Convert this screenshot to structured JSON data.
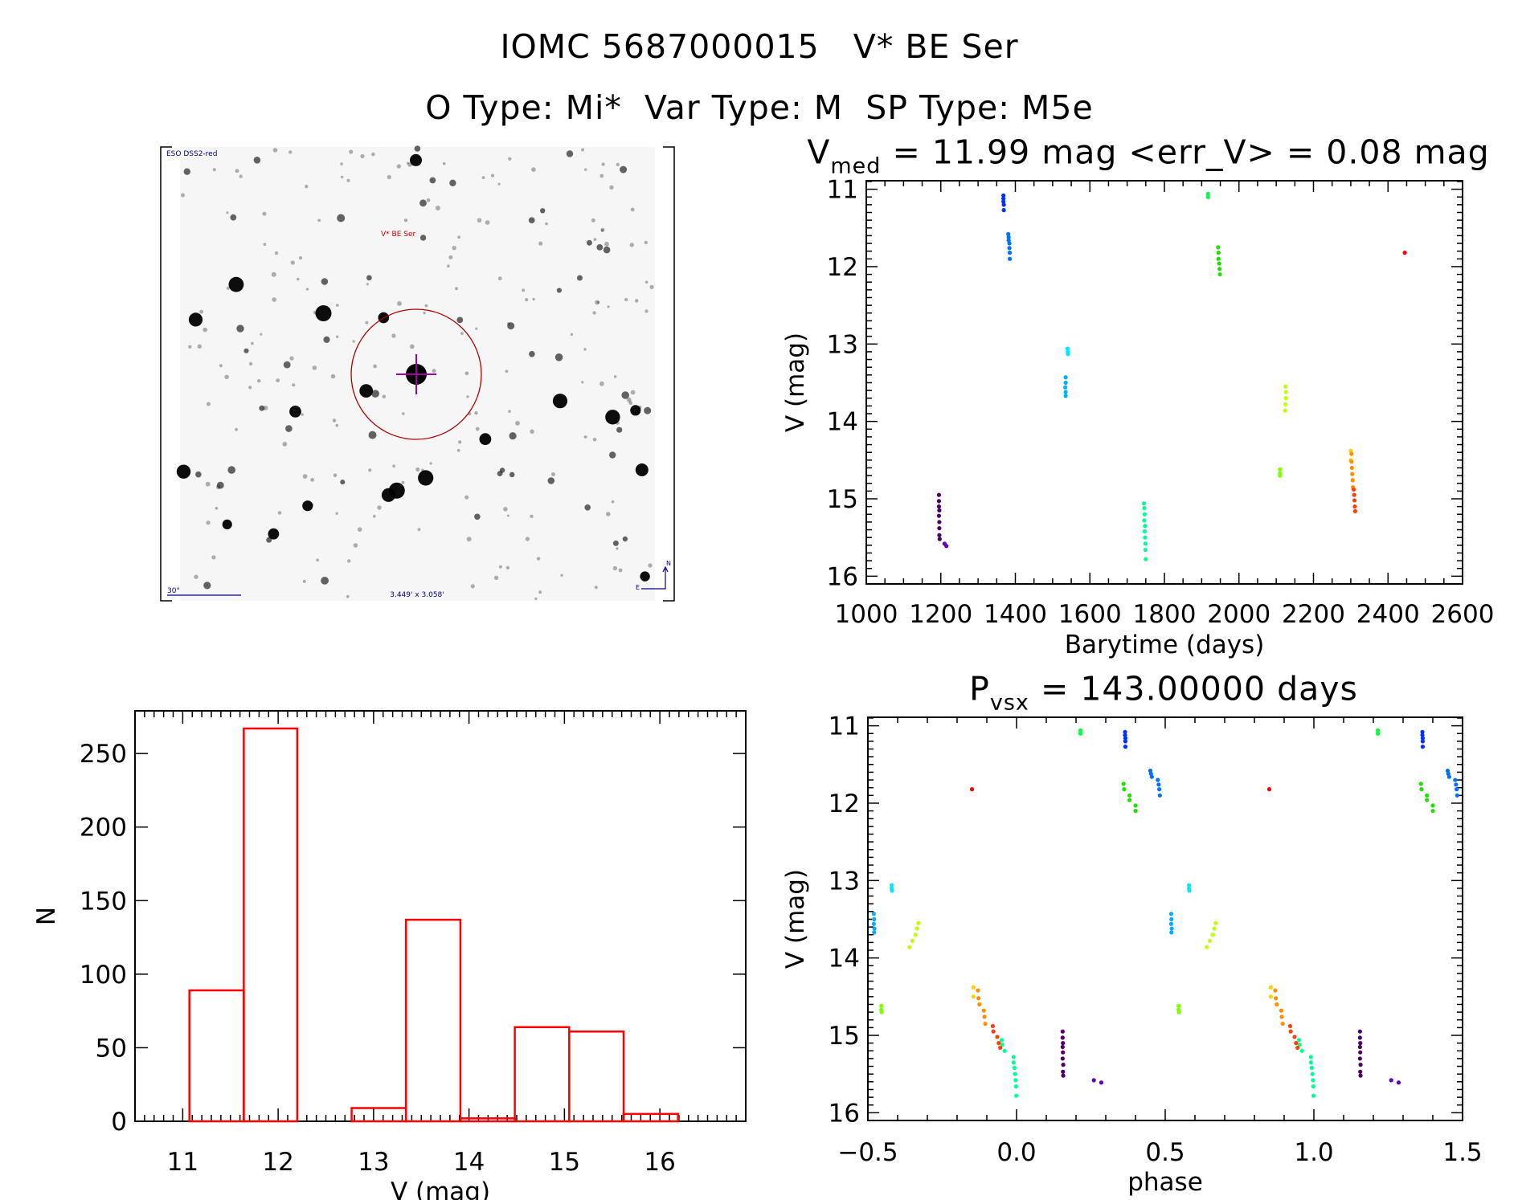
{
  "header": {
    "title_line1": "IOMC 5687000015   V* BE Ser",
    "title_line2": "O Type: Mi*  Var Type: M  SP Type: M5e"
  },
  "finder_image": {
    "survey_label": "ESO DSS2-red",
    "target_label": "V* BE Ser",
    "scale_label": "30\"",
    "fov_label": "3.449' x 3.058'",
    "compass_n": "N",
    "compass_e": "E"
  },
  "chart_data": [
    {
      "id": "lightcurve",
      "type": "scatter",
      "title": {
        "main": "V",
        "sub": "med",
        "rest": " = 11.99 mag <err_V> = 0.08 mag"
      },
      "xlabel": "Barytime (days)",
      "ylabel": "V (mag)",
      "xlim": [
        1000,
        2600
      ],
      "ylim": [
        16.1,
        10.89
      ],
      "y_inverted": true,
      "xticks": [
        "1000",
        "1200",
        "1400",
        "1600",
        "1800",
        "2000",
        "2200",
        "2400",
        "2600"
      ],
      "yticks": [
        "11",
        "12",
        "13",
        "14",
        "15",
        "16"
      ]
    },
    {
      "id": "phased",
      "type": "scatter",
      "title": {
        "main": "P",
        "sub": "vsx",
        "rest": " = 143.00000 days"
      },
      "xlabel": "phase",
      "ylabel": "V (mag)",
      "xlim": [
        -0.5,
        1.5
      ],
      "ylim": [
        16.1,
        10.89
      ],
      "y_inverted": true,
      "xticks": [
        "-0.5",
        "0.0",
        "0.5",
        "1.0",
        "1.5"
      ],
      "yticks": [
        "11",
        "12",
        "13",
        "14",
        "15",
        "16"
      ]
    },
    {
      "id": "histogram",
      "type": "bar",
      "xlabel": "V (mag)",
      "ylabel": "N",
      "xlim": [
        10.5,
        16.9
      ],
      "ylim": [
        0,
        279
      ],
      "xticks": [
        "11",
        "12",
        "13",
        "14",
        "15",
        "16"
      ],
      "yticks": [
        "0",
        "50",
        "100",
        "150",
        "200",
        "250"
      ],
      "color": "#ff0000",
      "bin_edges": [
        11.07,
        11.64,
        12.2,
        12.77,
        13.34,
        13.91,
        14.48,
        15.05,
        15.62,
        16.19
      ],
      "counts": [
        89,
        267,
        0,
        9,
        137,
        2,
        64,
        61,
        5
      ]
    }
  ],
  "observations": [
    {
      "color": "#4b0060",
      "t": [
        1195,
        1195,
        1195,
        1196,
        1195,
        1196,
        1196,
        1196,
        1197
      ],
      "phase": [
        0.155,
        0.155,
        0.156,
        0.155,
        0.156,
        0.155,
        0.157,
        0.156,
        0.157
      ],
      "V": [
        14.95,
        15.03,
        15.1,
        15.15,
        15.22,
        15.3,
        15.38,
        15.47,
        15.52
      ]
    },
    {
      "color": "#6000c0",
      "t": [
        1210,
        1215
      ],
      "phase": [
        0.26,
        0.285
      ],
      "V": [
        15.58,
        15.61
      ]
    },
    {
      "color": "#0030ff",
      "t": [
        1368,
        1368,
        1368,
        1369,
        1369
      ],
      "phase": [
        0.365,
        0.365,
        0.366,
        0.366,
        0.366
      ],
      "V": [
        11.08,
        11.12,
        11.16,
        11.2,
        11.27
      ]
    },
    {
      "color": "#0070ff",
      "t": [
        1381,
        1382,
        1382,
        1384,
        1384,
        1385,
        1385
      ],
      "phase": [
        0.45,
        0.452,
        0.455,
        0.475,
        0.478,
        0.48,
        0.482
      ],
      "V": [
        11.58,
        11.62,
        11.66,
        11.7,
        11.76,
        11.82,
        11.9
      ]
    },
    {
      "color": "#00e8ff",
      "t": [
        1540,
        1541,
        1541
      ],
      "phase": [
        0.58,
        0.58,
        0.581
      ],
      "V": [
        13.06,
        13.1,
        13.13
      ]
    },
    {
      "color": "#00b0ff",
      "t": [
        1535,
        1535,
        1534,
        1535,
        1535
      ],
      "phase": [
        0.52,
        0.521,
        0.52,
        0.522,
        0.521
      ],
      "V": [
        13.43,
        13.5,
        13.56,
        13.62,
        13.67
      ]
    },
    {
      "color": "#00ff99",
      "t": [
        1745,
        1746,
        1747,
        1746,
        1748,
        1747,
        1748,
        1749,
        1749,
        1750
      ],
      "phase": [
        0.95,
        0.952,
        0.96,
        0.99,
        0.99,
        0.993,
        0.995,
        0.997,
        0.998,
        0.999
      ],
      "V": [
        15.06,
        15.12,
        15.2,
        15.28,
        15.35,
        15.42,
        15.5,
        15.58,
        15.66,
        15.78
      ]
    },
    {
      "color": "#00ff40",
      "t": [
        1917,
        1917
      ],
      "phase": [
        0.215,
        0.215
      ],
      "V": [
        11.06,
        11.1
      ]
    },
    {
      "color": "#20e000",
      "t": [
        1944,
        1945,
        1945,
        1947,
        1948,
        1949
      ],
      "phase": [
        0.36,
        0.362,
        0.38,
        0.38,
        0.4,
        0.4
      ],
      "V": [
        11.75,
        11.82,
        11.9,
        11.96,
        12.03,
        12.1
      ]
    },
    {
      "color": "#80ff00",
      "t": [
        2110,
        2110,
        2110
      ],
      "phase": [
        0.545,
        0.545,
        0.546
      ],
      "V": [
        14.62,
        14.67,
        14.7
      ]
    },
    {
      "color": "#c0ff00",
      "t": [
        2125,
        2126,
        2126,
        2125,
        2124
      ],
      "phase": [
        0.67,
        0.665,
        0.66,
        0.65,
        0.64
      ],
      "V": [
        13.55,
        13.62,
        13.7,
        13.78,
        13.86
      ]
    },
    {
      "color": "#ffd000",
      "t": [
        2300,
        2300
      ],
      "phase": [
        0.855,
        0.855
      ],
      "V": [
        14.38,
        14.5
      ]
    },
    {
      "color": "#ff9000",
      "t": [
        2302,
        2302,
        2303,
        2304,
        2305,
        2306
      ],
      "phase": [
        0.87,
        0.872,
        0.875,
        0.89,
        0.892,
        0.895
      ],
      "V": [
        14.42,
        14.52,
        14.6,
        14.68,
        14.76,
        14.85
      ]
    },
    {
      "color": "#ff4000",
      "t": [
        2308,
        2309,
        2310,
        2311,
        2312
      ],
      "phase": [
        0.92,
        0.922,
        0.935,
        0.94,
        0.945
      ],
      "V": [
        14.88,
        14.95,
        15.02,
        15.1,
        15.16
      ]
    },
    {
      "color": "#ff0000",
      "t": [
        2445
      ],
      "phase": [
        0.85
      ],
      "V": [
        11.82
      ]
    }
  ]
}
